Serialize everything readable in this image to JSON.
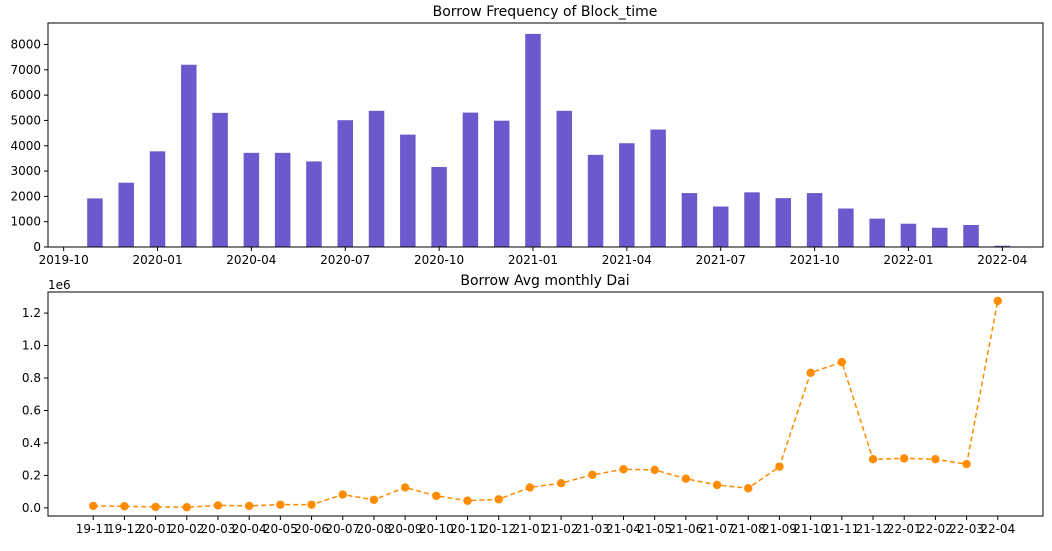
{
  "chart_data": [
    {
      "type": "bar",
      "title": "Borrow Frequency of Block_time",
      "xlabel": "",
      "ylabel": "",
      "color": "#6a5acd",
      "ylim": [
        0,
        8850
      ],
      "x_ticks": [
        "2019-10",
        "2020-01",
        "2020-04",
        "2020-07",
        "2020-10",
        "2021-01",
        "2021-04",
        "2021-07",
        "2021-10",
        "2022-01",
        "2022-04"
      ],
      "y_ticks": [
        "0",
        "1000",
        "2000",
        "3000",
        "4000",
        "5000",
        "6000",
        "7000",
        "8000"
      ],
      "categories": [
        "2019-11",
        "2019-12",
        "2020-01",
        "2020-02",
        "2020-03",
        "2020-04",
        "2020-05",
        "2020-06",
        "2020-07",
        "2020-08",
        "2020-09",
        "2020-10",
        "2020-11",
        "2020-12",
        "2021-01",
        "2021-02",
        "2021-03",
        "2021-04",
        "2021-05",
        "2021-06",
        "2021-07",
        "2021-08",
        "2021-09",
        "2021-10",
        "2021-11",
        "2021-12",
        "2022-01",
        "2022-02",
        "2022-03",
        "2022-04"
      ],
      "values": [
        1920,
        2540,
        3780,
        7200,
        5300,
        3720,
        3720,
        3380,
        5010,
        5380,
        4440,
        3160,
        5310,
        4990,
        8420,
        5380,
        3640,
        4100,
        4640,
        2130,
        1600,
        2160,
        1930,
        2130,
        1520,
        1120,
        920,
        760,
        870,
        50
      ]
    },
    {
      "type": "line",
      "title": "Borrow Avg monthly Dai",
      "xlabel": "",
      "ylabel": "",
      "scale_label": "1e6",
      "color": "#ff8c00",
      "line_style": "dashed",
      "marker": "circle",
      "ylim": [
        -0.05,
        1.33
      ],
      "y_ticks": [
        "0.0",
        "0.2",
        "0.4",
        "0.6",
        "0.8",
        "1.0",
        "1.2"
      ],
      "x": [
        "19-11",
        "19-12",
        "20-01",
        "20-02",
        "20-03",
        "20-04",
        "20-05",
        "20-06",
        "20-07",
        "20-08",
        "20-09",
        "20-10",
        "20-11",
        "20-12",
        "21-01",
        "21-02",
        "21-03",
        "21-04",
        "21-05",
        "21-06",
        "21-07",
        "21-08",
        "21-09",
        "21-10",
        "21-11",
        "21-12",
        "22-01",
        "22-02",
        "22-03",
        "22-04"
      ],
      "values": [
        0.012,
        0.01,
        0.006,
        0.004,
        0.015,
        0.012,
        0.02,
        0.02,
        0.082,
        0.05,
        0.126,
        0.074,
        0.044,
        0.053,
        0.126,
        0.152,
        0.204,
        0.238,
        0.234,
        0.18,
        0.141,
        0.121,
        0.254,
        0.832,
        0.898,
        0.3,
        0.305,
        0.3,
        0.27,
        1.275
      ]
    }
  ]
}
